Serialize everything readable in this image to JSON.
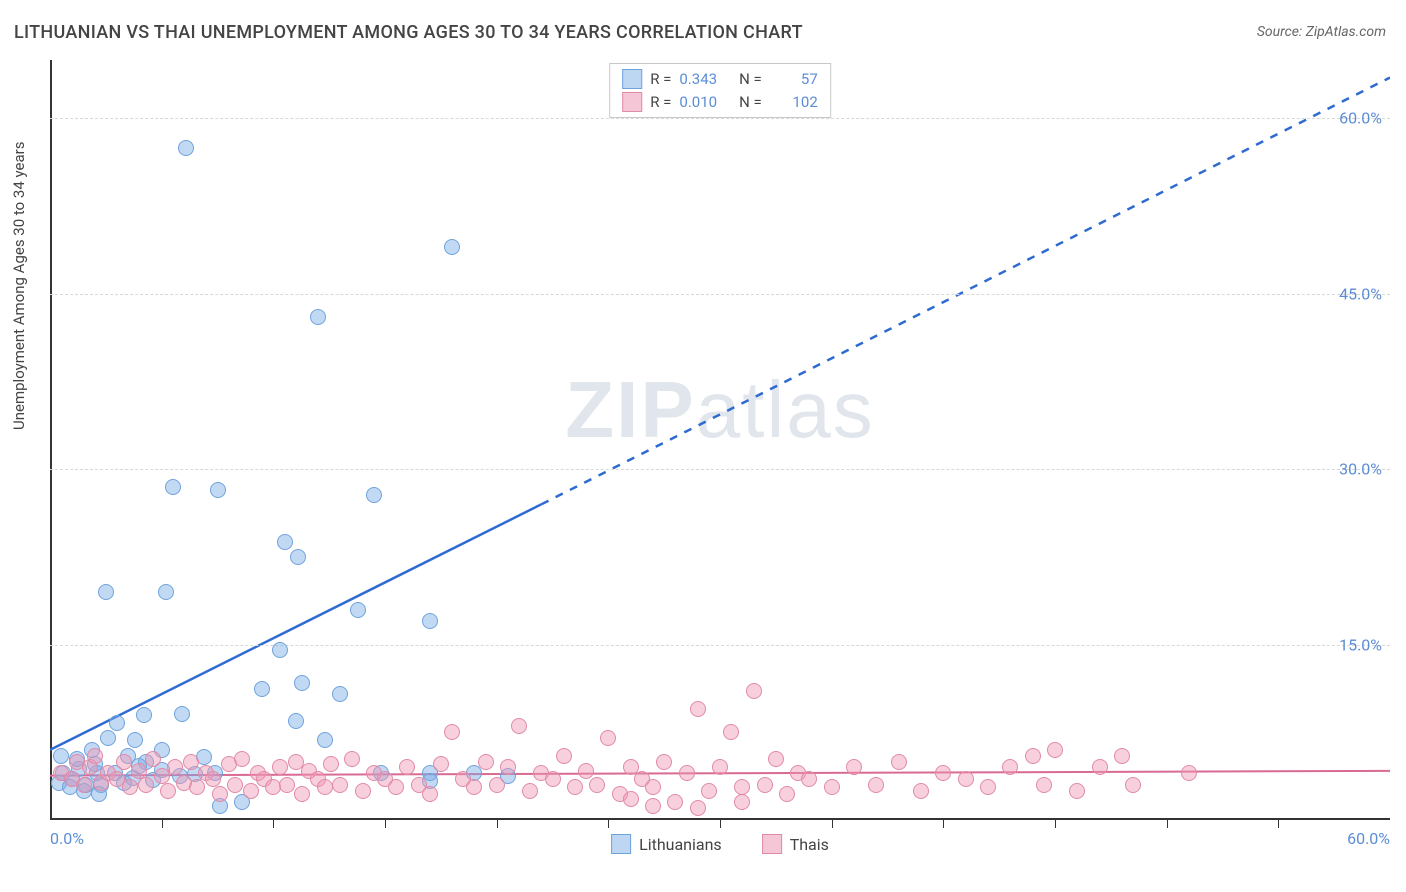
{
  "title": "LITHUANIAN VS THAI UNEMPLOYMENT AMONG AGES 30 TO 34 YEARS CORRELATION CHART",
  "source": "Source: ZipAtlas.com",
  "ylabel": "Unemployment Among Ages 30 to 34 years",
  "watermark": "ZIPatlas",
  "chart": {
    "type": "scatter",
    "background_color": "#ffffff",
    "grid_color": "#d8d8d8",
    "axis_color": "#333333",
    "tick_label_color": "#5b8dd6",
    "xlim": [
      0,
      60
    ],
    "ylim": [
      0,
      65
    ],
    "xticks_major": [
      0,
      60
    ],
    "xticks_minor": [
      5,
      10,
      15,
      20,
      25,
      30,
      35,
      40,
      45,
      50,
      55
    ],
    "yticks": [
      15,
      30,
      45,
      60
    ],
    "ytick_labels": [
      "15.0%",
      "30.0%",
      "45.0%",
      "60.0%"
    ],
    "xtick_labels": [
      "0.0%",
      "60.0%"
    ],
    "marker_radius": 8,
    "marker_border_width": 1.5,
    "series": [
      {
        "name": "Lithuanians",
        "fill": "rgba(120,170,230,0.45)",
        "stroke": "#6fa3dc",
        "swatch_fill": "#bdd6f2",
        "swatch_stroke": "#6fa3dc",
        "R": "0.343",
        "N": "57",
        "trend": {
          "solid_from": [
            0,
            6
          ],
          "solid_to": [
            22,
            27
          ],
          "dashed_to": [
            60,
            63.5
          ],
          "color": "#2e6bd0",
          "width": 2.5
        },
        "points": [
          [
            6.1,
            57.5
          ],
          [
            5.5,
            28.5
          ],
          [
            7.5,
            28.2
          ],
          [
            12.0,
            43.0
          ],
          [
            14.5,
            27.8
          ],
          [
            18.0,
            49.0
          ],
          [
            2.5,
            19.5
          ],
          [
            5.2,
            19.5
          ],
          [
            10.5,
            23.8
          ],
          [
            11.1,
            22.5
          ],
          [
            13.8,
            18.0
          ],
          [
            10.3,
            14.5
          ],
          [
            9.5,
            11.2
          ],
          [
            11.0,
            8.5
          ],
          [
            11.3,
            11.7
          ],
          [
            13.0,
            10.8
          ],
          [
            12.3,
            6.8
          ],
          [
            17.0,
            17.0
          ],
          [
            0.6,
            4.0
          ],
          [
            1.3,
            4.4
          ],
          [
            1.9,
            6.0
          ],
          [
            2.1,
            4.0
          ],
          [
            3.0,
            8.3
          ],
          [
            2.9,
            4.0
          ],
          [
            3.8,
            6.8
          ],
          [
            4.3,
            5.0
          ],
          [
            4.2,
            9.0
          ],
          [
            5.0,
            6.0
          ],
          [
            5.0,
            4.3
          ],
          [
            5.9,
            9.1
          ],
          [
            5.8,
            3.8
          ],
          [
            6.5,
            3.9
          ],
          [
            6.9,
            5.4
          ],
          [
            7.4,
            4.0
          ],
          [
            7.6,
            1.2
          ],
          [
            8.6,
            1.5
          ],
          [
            14.8,
            4.0
          ],
          [
            17.0,
            4.0
          ],
          [
            17.0,
            3.3
          ],
          [
            19.0,
            4.0
          ],
          [
            20.5,
            3.8
          ],
          [
            1.0,
            3.5
          ],
          [
            1.6,
            3.0
          ],
          [
            2.3,
            3.0
          ],
          [
            3.3,
            3.2
          ],
          [
            3.7,
            3.6
          ],
          [
            4.6,
            3.4
          ],
          [
            0.5,
            5.5
          ],
          [
            1.2,
            5.2
          ],
          [
            2.0,
            4.8
          ],
          [
            2.6,
            7.0
          ],
          [
            3.5,
            5.5
          ],
          [
            4.0,
            4.6
          ],
          [
            0.4,
            3.2
          ],
          [
            0.9,
            2.8
          ],
          [
            1.5,
            2.5
          ],
          [
            2.2,
            2.2
          ]
        ]
      },
      {
        "name": "Thais",
        "fill": "rgba(240,150,180,0.45)",
        "stroke": "#e18aa8",
        "swatch_fill": "#f5c6d6",
        "swatch_stroke": "#e18aa8",
        "R": "0.010",
        "N": "102",
        "trend": {
          "solid_from": [
            0,
            3.8
          ],
          "solid_to": [
            60,
            4.2
          ],
          "dashed_to": null,
          "color": "#d96a94",
          "width": 2
        },
        "points": [
          [
            0.5,
            4.0
          ],
          [
            1.0,
            3.5
          ],
          [
            1.2,
            5.0
          ],
          [
            1.5,
            3.0
          ],
          [
            1.8,
            4.5
          ],
          [
            2.0,
            5.5
          ],
          [
            2.3,
            3.2
          ],
          [
            2.6,
            4.0
          ],
          [
            3.0,
            3.5
          ],
          [
            3.3,
            5.0
          ],
          [
            3.6,
            2.8
          ],
          [
            4.0,
            4.2
          ],
          [
            4.3,
            3.0
          ],
          [
            4.6,
            5.2
          ],
          [
            5.0,
            3.8
          ],
          [
            5.3,
            2.5
          ],
          [
            5.6,
            4.5
          ],
          [
            6.0,
            3.2
          ],
          [
            6.3,
            5.0
          ],
          [
            6.6,
            2.8
          ],
          [
            7.0,
            4.0
          ],
          [
            7.3,
            3.5
          ],
          [
            7.6,
            2.2
          ],
          [
            8.0,
            4.8
          ],
          [
            8.3,
            3.0
          ],
          [
            8.6,
            5.2
          ],
          [
            9.0,
            2.5
          ],
          [
            9.3,
            4.0
          ],
          [
            9.6,
            3.5
          ],
          [
            10.0,
            2.8
          ],
          [
            10.3,
            4.5
          ],
          [
            10.6,
            3.0
          ],
          [
            11.0,
            5.0
          ],
          [
            11.3,
            2.2
          ],
          [
            11.6,
            4.2
          ],
          [
            12.0,
            3.5
          ],
          [
            12.3,
            2.8
          ],
          [
            12.6,
            4.8
          ],
          [
            13.0,
            3.0
          ],
          [
            13.5,
            5.2
          ],
          [
            14.0,
            2.5
          ],
          [
            14.5,
            4.0
          ],
          [
            15.0,
            3.5
          ],
          [
            15.5,
            2.8
          ],
          [
            16.0,
            4.5
          ],
          [
            16.5,
            3.0
          ],
          [
            17.0,
            2.2
          ],
          [
            17.5,
            4.8
          ],
          [
            18.0,
            7.5
          ],
          [
            18.5,
            3.5
          ],
          [
            19.0,
            2.8
          ],
          [
            19.5,
            5.0
          ],
          [
            20.0,
            3.0
          ],
          [
            20.5,
            4.5
          ],
          [
            21.0,
            8.0
          ],
          [
            21.5,
            2.5
          ],
          [
            22.0,
            4.0
          ],
          [
            22.5,
            3.5
          ],
          [
            23.0,
            5.5
          ],
          [
            23.5,
            2.8
          ],
          [
            24.0,
            4.2
          ],
          [
            24.5,
            3.0
          ],
          [
            25.0,
            7.0
          ],
          [
            25.5,
            2.2
          ],
          [
            26.0,
            4.5
          ],
          [
            26.5,
            3.5
          ],
          [
            27.0,
            2.8
          ],
          [
            27.5,
            5.0
          ],
          [
            28.0,
            1.5
          ],
          [
            28.5,
            4.0
          ],
          [
            29.0,
            9.5
          ],
          [
            29.5,
            2.5
          ],
          [
            30.0,
            4.5
          ],
          [
            30.5,
            7.5
          ],
          [
            31.0,
            2.8
          ],
          [
            31.5,
            11.0
          ],
          [
            32.0,
            3.0
          ],
          [
            32.5,
            5.2
          ],
          [
            33.0,
            2.2
          ],
          [
            33.5,
            4.0
          ],
          [
            34.0,
            3.5
          ],
          [
            35.0,
            2.8
          ],
          [
            36.0,
            4.5
          ],
          [
            37.0,
            3.0
          ],
          [
            38.0,
            5.0
          ],
          [
            39.0,
            2.5
          ],
          [
            40.0,
            4.0
          ],
          [
            41.0,
            3.5
          ],
          [
            42.0,
            2.8
          ],
          [
            43.0,
            4.5
          ],
          [
            44.0,
            5.5
          ],
          [
            44.5,
            3.0
          ],
          [
            45.0,
            6.0
          ],
          [
            46.0,
            2.5
          ],
          [
            47.0,
            4.5
          ],
          [
            48.0,
            5.5
          ],
          [
            48.5,
            3.0
          ],
          [
            51.0,
            4.0
          ],
          [
            27.0,
            1.2
          ],
          [
            29.0,
            1.0
          ],
          [
            31.0,
            1.5
          ],
          [
            26.0,
            1.8
          ]
        ]
      }
    ],
    "legend_labels": [
      "Lithuanians",
      "Thais"
    ]
  }
}
